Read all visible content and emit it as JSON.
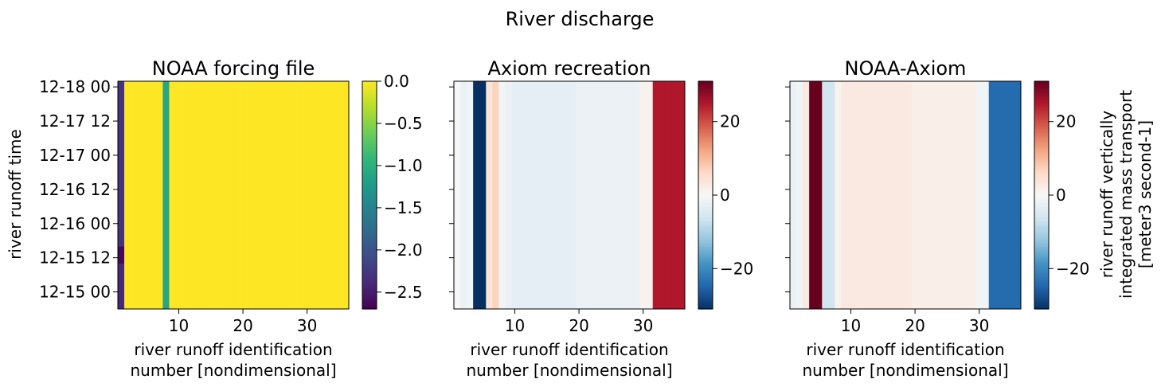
{
  "figure": {
    "suptitle": "River discharge"
  },
  "colors": {
    "viridis": [
      "#440154",
      "#482878",
      "#3e4989",
      "#31688e",
      "#26828e",
      "#1f9e89",
      "#35b779",
      "#6ece58",
      "#b5de2b",
      "#fde725"
    ],
    "rdbu_r": [
      "#053061",
      "#2166ac",
      "#4393c3",
      "#92c5de",
      "#d1e5f0",
      "#f7f7f7",
      "#fddbc7",
      "#f4a582",
      "#d6604d",
      "#b2182b",
      "#67001f"
    ]
  },
  "chart_data": [
    {
      "type": "heatmap",
      "title": "NOAA forcing file",
      "xlabel": [
        "river runoff identification",
        "number [nondimensional]"
      ],
      "ylabel": "river runoff time",
      "x_ticks": [
        10,
        20,
        30
      ],
      "xlim": [
        0.5,
        36.5
      ],
      "y_ticks": [
        "12-18 00",
        "12-17 12",
        "12-17 00",
        "12-16 12",
        "12-16 00",
        "12-15 12",
        "12-15 00"
      ],
      "y_tick_hours": [
        72,
        60,
        48,
        36,
        24,
        12,
        0
      ],
      "ylim_hours": [
        -6,
        74
      ],
      "colormap": "viridis",
      "clim": [
        -2.7,
        0.0
      ],
      "colorbar_ticks": [
        0.0,
        -0.5,
        -1.0,
        -1.5,
        -2.0,
        -2.5
      ],
      "colorbar_tick_labels": [
        "0.0",
        "−0.5",
        "−1.0",
        "−1.5",
        "−2.0",
        "−2.5"
      ],
      "colorbar_label": "",
      "column_values": [
        -2.3,
        0,
        0,
        0,
        0,
        0,
        0,
        -1.1,
        0,
        0,
        0,
        0,
        0,
        0,
        0,
        0,
        0,
        0,
        0,
        0,
        0,
        0,
        0,
        0,
        0,
        0,
        0,
        0,
        0,
        0,
        0,
        0,
        0,
        0,
        0,
        0
      ],
      "column_one_profile": [
        {
          "from_hour": -6,
          "to_hour": 10,
          "value": -2.4
        },
        {
          "from_hour": 10,
          "to_hour": 16,
          "value": -2.65
        },
        {
          "from_hour": 16,
          "to_hour": 74,
          "value": -2.3
        }
      ]
    },
    {
      "type": "heatmap",
      "title": "Axiom recreation",
      "xlabel": [
        "river runoff identification",
        "number [nondimensional]"
      ],
      "ylabel": "",
      "x_ticks": [
        10,
        20,
        30
      ],
      "xlim": [
        0.5,
        36.5
      ],
      "shared_y": true,
      "colormap": "RdBu_r",
      "clim": [
        -31,
        31
      ],
      "colorbar_ticks": [
        20,
        0,
        -20
      ],
      "colorbar_tick_labels": [
        "20",
        "0",
        "−20"
      ],
      "colorbar_label": "",
      "column_values": [
        0,
        -2,
        -1,
        -31,
        -31,
        4,
        7,
        -1,
        -2,
        -3,
        -3,
        -3,
        -3,
        -3,
        -3,
        -3,
        -3,
        -3,
        -3,
        -2,
        -2,
        -2,
        -2,
        -2,
        -2,
        -2,
        -2,
        -2,
        -2,
        1,
        1,
        25,
        25,
        25,
        25,
        25
      ]
    },
    {
      "type": "heatmap",
      "title": "NOAA-Axiom",
      "xlabel": [
        "river runoff identification",
        "number [nondimensional]"
      ],
      "ylabel": "",
      "x_ticks": [
        10,
        20,
        30
      ],
      "xlim": [
        0.5,
        36.5
      ],
      "shared_y": true,
      "colormap": "RdBu_r",
      "clim": [
        -31,
        31
      ],
      "colorbar_ticks": [
        20,
        0,
        -20
      ],
      "colorbar_tick_labels": [
        "20",
        "0",
        "−20"
      ],
      "colorbar_label": [
        "river runoff vertically",
        "integrated mass transport",
        "[meter3 second-1]"
      ],
      "column_values": [
        -2,
        -1,
        3,
        31,
        31,
        -6,
        -6,
        1,
        3,
        3,
        3,
        3,
        3,
        3,
        3,
        3,
        3,
        3,
        3,
        2,
        2,
        2,
        2,
        2,
        2,
        2,
        2,
        2,
        2,
        -1,
        -1,
        -24,
        -24,
        -24,
        -24,
        -24
      ]
    }
  ]
}
